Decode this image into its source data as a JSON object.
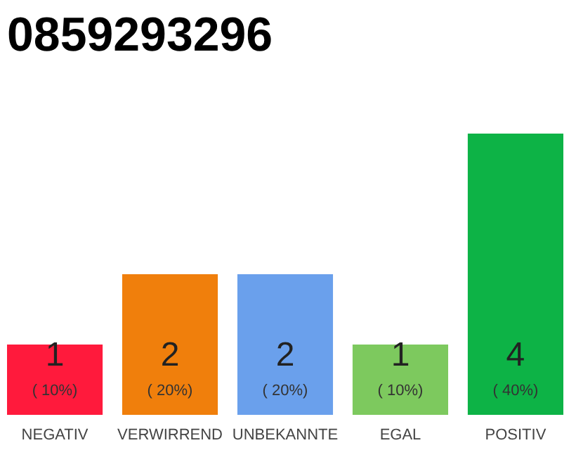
{
  "chart_data": {
    "type": "bar",
    "title": "0859293296",
    "categories": [
      "NEGATIV",
      "VERWIRREND",
      "UNBEKANNTE",
      "EGAL",
      "POSITIV"
    ],
    "values": [
      1,
      2,
      2,
      1,
      4
    ],
    "colors": [
      "#ff1a3c",
      "#f07f0c",
      "#6aa0ec",
      "#7dc95e",
      "#0db346"
    ],
    "data_labels": true,
    "annotations": [
      "( 10%)",
      "( 20%)",
      "( 20%)",
      "( 10%)",
      "( 40%)"
    ]
  }
}
